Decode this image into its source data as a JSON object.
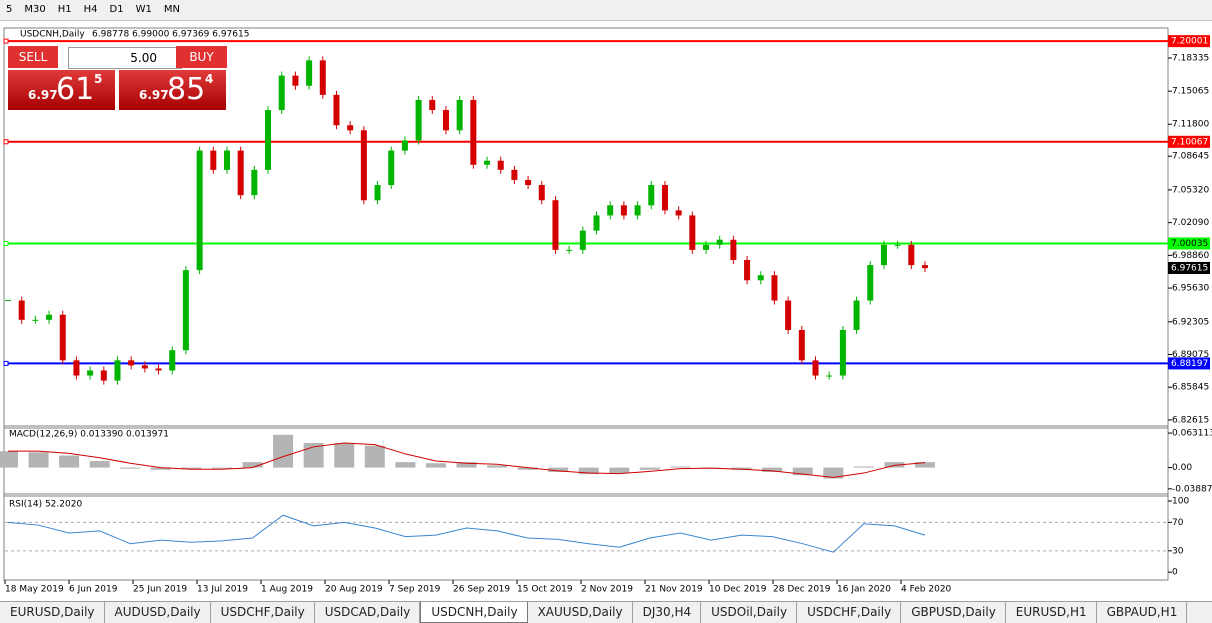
{
  "toolbar": {
    "timeframes": [
      "5",
      "M30",
      "H1",
      "H4",
      "D1",
      "W1",
      "MN"
    ]
  },
  "header": {
    "symbol": "USDCNH,Daily",
    "ohlc": "6.98778 6.99000 6.97369 6.97615"
  },
  "trade_panel": {
    "sell": "SELL",
    "lots": "5.00",
    "buy": "BUY",
    "bid": {
      "big": "6.97",
      "pips": "61",
      "point": "5"
    },
    "ask": {
      "big": "6.97",
      "pips": "85",
      "point": "4"
    }
  },
  "price_chart": {
    "ylim": [
      6.8202,
      7.211
    ],
    "yticks": [
      7.18335,
      7.15065,
      {
        "value": 7.118,
        "label": "7.11800"
      },
      7.08645,
      {
        "value": 7.0532,
        "label": "7.05320"
      },
      {
        "value": 7.0209,
        "label": "7.02090"
      },
      {
        "value": 6.9886,
        "label": "6.98860"
      },
      {
        "value": 6.9563,
        "label": "6.95630"
      },
      6.92305,
      6.89075,
      6.85845,
      6.82615
    ],
    "levels": [
      {
        "value": 7.20001,
        "color": "#ff0000"
      },
      {
        "value": 7.10067,
        "color": "#ff0000"
      },
      {
        "value": 7.00035,
        "color": "#00ff00"
      },
      {
        "value": 6.88197,
        "color": "#0000ff"
      }
    ],
    "current_price": 6.97615,
    "up_color": "#00b400",
    "down_color": "#d40000",
    "closes": [
      6.944,
      6.925,
      6.925,
      6.93,
      6.885,
      6.87,
      6.875,
      6.865,
      6.885,
      6.88,
      6.877,
      6.875,
      6.895,
      6.974,
      7.092,
      7.073,
      7.092,
      7.048,
      7.073,
      7.132,
      7.166,
      7.156,
      7.181,
      7.147,
      7.117,
      7.112,
      7.043,
      7.058,
      7.092,
      7.102,
      7.142,
      7.132,
      7.112,
      7.142,
      7.078,
      7.082,
      7.073,
      7.063,
      7.058,
      7.043,
      6.994,
      6.994,
      7.013,
      7.028,
      7.038,
      7.028,
      7.038,
      7.058,
      7.033,
      7.028,
      6.994,
      6.999,
      7.004,
      6.984,
      6.964,
      6.969,
      6.944,
      6.915,
      6.885,
      6.87,
      6.87,
      6.915,
      6.944,
      6.979,
      6.999,
      6.999,
      6.979,
      6.976
    ]
  },
  "macd": {
    "label": "MACD(12,26,9) 0.013390 0.013971",
    "ylim": [
      -0.0483,
      0.0724
    ],
    "yticks": [
      0.063113,
      {
        "value": 0,
        "label": "0.00"
      },
      -0.038872
    ],
    "histogram": [
      0.03,
      0.028,
      0.022,
      0.012,
      -0.002,
      -0.004,
      -0.003,
      -0.002,
      0.01,
      0.06,
      0.045,
      0.045,
      0.04,
      0.01,
      0.008,
      0.01,
      0.004,
      -0.004,
      -0.008,
      -0.012,
      -0.01,
      -0.004,
      0.002,
      -0.002,
      -0.004,
      -0.008,
      -0.014,
      -0.02,
      0.002,
      0.01,
      0.01
    ],
    "signal": [
      0.03,
      0.03,
      0.026,
      0.018,
      0.008,
      0,
      -0.003,
      -0.003,
      0,
      0.02,
      0.038,
      0.045,
      0.042,
      0.025,
      0.012,
      0.008,
      0.006,
      0,
      -0.006,
      -0.01,
      -0.011,
      -0.007,
      -0.002,
      -0.001,
      -0.003,
      -0.006,
      -0.012,
      -0.018,
      -0.01,
      0.004,
      0.009
    ]
  },
  "rsi": {
    "label": "RSI(14) 52.2020",
    "ylim": [
      -11,
      107
    ],
    "yticks": [
      100,
      70,
      30,
      0
    ],
    "values": [
      70,
      66,
      55,
      58,
      40,
      45,
      42,
      44,
      48,
      80,
      65,
      70,
      62,
      50,
      52,
      62,
      58,
      48,
      46,
      40,
      35,
      48,
      55,
      45,
      52,
      50,
      40,
      28,
      68,
      65,
      52
    ]
  },
  "dates": [
    "18 May 2019",
    "6 Jun 2019",
    "25 Jun 2019",
    "13 Jul 2019",
    "1 Aug 2019",
    "20 Aug 2019",
    "7 Sep 2019",
    "26 Sep 2019",
    "15 Oct 2019",
    "2 Nov 2019",
    "21 Nov 2019",
    "10 Dec 2019",
    "28 Dec 2019",
    "16 Jan 2020",
    "4 Feb 2020"
  ],
  "tabs": [
    "EURUSD,Daily",
    "AUDUSD,Daily",
    "USDCHF,Daily",
    "USDCAD,Daily",
    "USDCNH,Daily",
    "XAUUSD,Daily",
    "DJ30,H4",
    "USDOil,Daily",
    "USDCHF,Daily",
    "GBPUSD,Daily",
    "EURUSD,H1",
    "GBPAUD,H1"
  ],
  "active_tab": 4
}
